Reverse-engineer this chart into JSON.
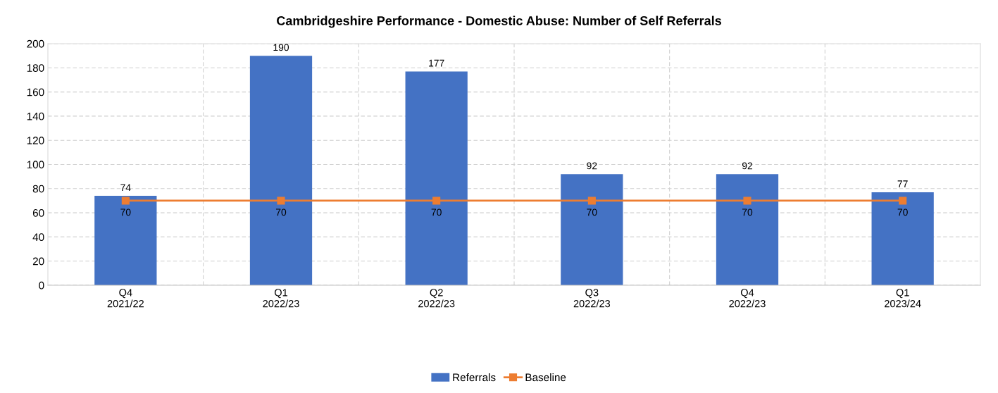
{
  "chart_data": {
    "type": "bar",
    "title": "Cambridgeshire Performance - Domestic Abuse: Number of Self Referrals",
    "categories": [
      "Q4\n2021/22",
      "Q1\n2022/23",
      "Q2\n2022/23",
      "Q3\n2022/23",
      "Q4\n2022/23",
      "Q1\n2023/24"
    ],
    "series": [
      {
        "name": "Referrals",
        "color": "#4472c4",
        "values": [
          74,
          190,
          177,
          92,
          92,
          77
        ]
      },
      {
        "name": "Baseline",
        "type": "line",
        "color": "#ed7d31",
        "values": [
          70,
          70,
          70,
          70,
          70,
          70
        ]
      }
    ],
    "ylim": [
      0,
      200
    ],
    "yticks": [
      0,
      20,
      40,
      60,
      80,
      100,
      120,
      140,
      160,
      180,
      200
    ],
    "grid": true,
    "legend": "bottom",
    "marker": "square",
    "line_style": "solid",
    "data_labels": true
  }
}
